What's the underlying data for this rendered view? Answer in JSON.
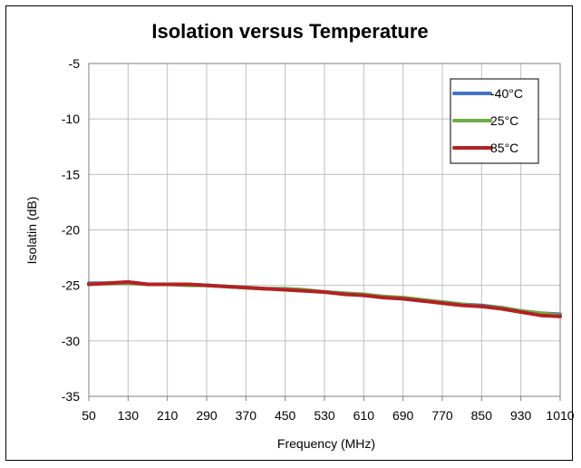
{
  "chart_data": {
    "type": "line",
    "title": "Isolation versus Temperature",
    "xlabel": "Frequency (MHz)",
    "ylabel": "Isolatin (dB)",
    "xlim": [
      50,
      1010
    ],
    "ylim": [
      -35,
      -5
    ],
    "xticks": [
      50,
      130,
      210,
      290,
      370,
      450,
      530,
      610,
      690,
      770,
      850,
      930,
      1010
    ],
    "yticks": [
      -5,
      -10,
      -15,
      -20,
      -25,
      -30,
      -35
    ],
    "grid": true,
    "legend_position": "top-right",
    "x": [
      50,
      90,
      130,
      170,
      210,
      250,
      290,
      330,
      370,
      410,
      450,
      490,
      530,
      570,
      610,
      650,
      690,
      730,
      770,
      810,
      850,
      890,
      930,
      970,
      1010
    ],
    "series": [
      {
        "name": "-40°C",
        "color": "#4472C4",
        "values": [
          -24.8,
          -24.8,
          -24.7,
          -24.9,
          -24.9,
          -24.9,
          -25.0,
          -25.1,
          -25.2,
          -25.3,
          -25.3,
          -25.4,
          -25.6,
          -25.7,
          -25.9,
          -26.0,
          -26.2,
          -26.4,
          -26.5,
          -26.7,
          -26.8,
          -27.0,
          -27.3,
          -27.5,
          -27.6
        ]
      },
      {
        "name": "25°C",
        "color": "#70AD47",
        "values": [
          -24.9,
          -24.8,
          -24.8,
          -24.9,
          -24.9,
          -25.0,
          -25.0,
          -25.1,
          -25.2,
          -25.3,
          -25.3,
          -25.4,
          -25.6,
          -25.7,
          -25.8,
          -26.0,
          -26.1,
          -26.3,
          -26.5,
          -26.7,
          -26.9,
          -27.0,
          -27.3,
          -27.5,
          -27.7
        ]
      },
      {
        "name": "85°C",
        "color": "#B22222",
        "values": [
          -24.9,
          -24.8,
          -24.7,
          -24.9,
          -24.9,
          -24.9,
          -25.0,
          -25.1,
          -25.2,
          -25.3,
          -25.4,
          -25.5,
          -25.6,
          -25.8,
          -25.9,
          -26.1,
          -26.2,
          -26.4,
          -26.6,
          -26.8,
          -26.9,
          -27.1,
          -27.4,
          -27.7,
          -27.8
        ]
      }
    ]
  }
}
